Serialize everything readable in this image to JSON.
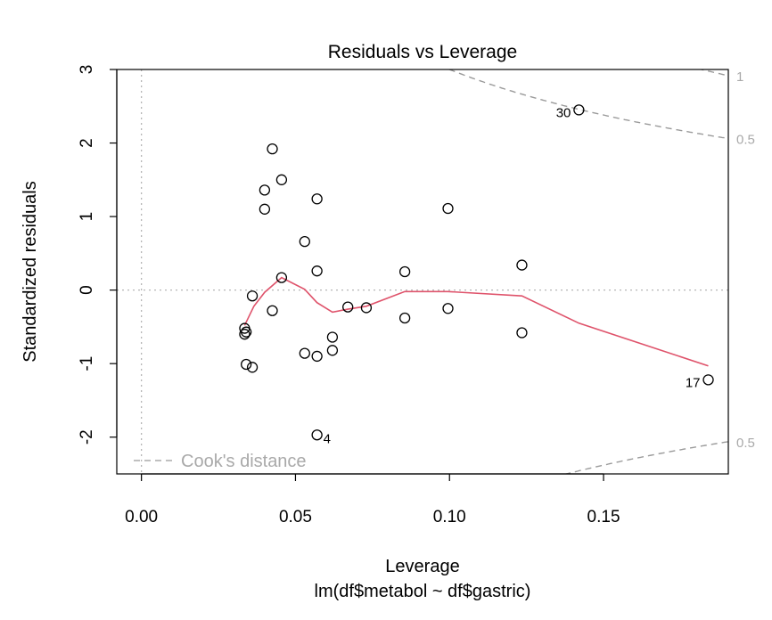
{
  "chart_data": {
    "type": "scatter",
    "title": "Residuals vs Leverage",
    "xlabel": "Leverage",
    "subtitle": "lm(df$metabol ~ df$gastric)",
    "ylabel": "Standardized residuals",
    "xlim": [
      -0.008,
      0.1905
    ],
    "ylim": [
      -2.5,
      3.0
    ],
    "x_ticks": [
      0.0,
      0.05,
      0.1,
      0.15
    ],
    "x_tick_labels": [
      "0.00",
      "0.05",
      "0.10",
      "0.15"
    ],
    "y_ticks": [
      -2,
      -1,
      0,
      1,
      2,
      3
    ],
    "y_tick_labels": [
      "-2",
      "-1",
      "0",
      "1",
      "2",
      "3"
    ],
    "points": [
      {
        "x": 0.0335,
        "y": -0.52
      },
      {
        "x": 0.0335,
        "y": -0.6
      },
      {
        "x": 0.034,
        "y": -0.57
      },
      {
        "x": 0.034,
        "y": -1.01
      },
      {
        "x": 0.036,
        "y": -1.05
      },
      {
        "x": 0.036,
        "y": -0.08
      },
      {
        "x": 0.04,
        "y": 1.36
      },
      {
        "x": 0.04,
        "y": 1.1
      },
      {
        "x": 0.0425,
        "y": 1.92
      },
      {
        "x": 0.0425,
        "y": -0.28
      },
      {
        "x": 0.0455,
        "y": 1.5
      },
      {
        "x": 0.0455,
        "y": 0.17
      },
      {
        "x": 0.053,
        "y": 0.66
      },
      {
        "x": 0.053,
        "y": -0.86
      },
      {
        "x": 0.057,
        "y": 1.24
      },
      {
        "x": 0.057,
        "y": 0.26
      },
      {
        "x": 0.057,
        "y": -0.9
      },
      {
        "x": 0.057,
        "y": -1.97,
        "label": "4"
      },
      {
        "x": 0.062,
        "y": -0.64
      },
      {
        "x": 0.062,
        "y": -0.82
      },
      {
        "x": 0.067,
        "y": -0.23
      },
      {
        "x": 0.073,
        "y": -0.24
      },
      {
        "x": 0.0855,
        "y": 0.25
      },
      {
        "x": 0.0855,
        "y": -0.38
      },
      {
        "x": 0.0995,
        "y": 1.11
      },
      {
        "x": 0.0995,
        "y": -0.25
      },
      {
        "x": 0.1235,
        "y": 0.34
      },
      {
        "x": 0.1235,
        "y": -0.58
      },
      {
        "x": 0.142,
        "y": 2.45,
        "label": "30"
      },
      {
        "x": 0.184,
        "y": -1.22,
        "label": "17"
      }
    ],
    "smoother": {
      "color": "#DF536B",
      "x": [
        0.0335,
        0.0365,
        0.04,
        0.0455,
        0.053,
        0.057,
        0.062,
        0.067,
        0.073,
        0.0855,
        0.0995,
        0.1235,
        0.142,
        0.184
      ],
      "y": [
        -0.48,
        -0.22,
        -0.03,
        0.17,
        0.01,
        -0.17,
        -0.3,
        -0.26,
        -0.22,
        -0.02,
        -0.02,
        -0.08,
        -0.45,
        -1.03
      ]
    },
    "cooks_contours": [
      {
        "level": 0.5,
        "label": "0.5"
      },
      {
        "level": 1,
        "label": "1"
      }
    ],
    "cooks_p": 2,
    "legend": {
      "label": "Cook's distance",
      "position": "bottom-left"
    },
    "reference_lines": {
      "h": 0,
      "v": 0
    }
  }
}
